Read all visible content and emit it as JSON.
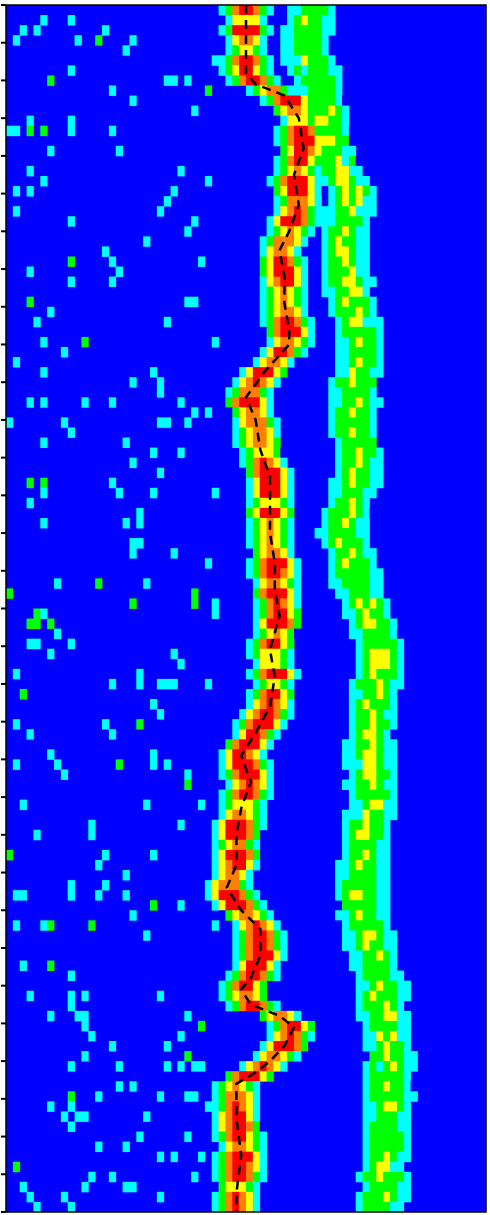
{
  "chart_data": {
    "type": "heatmap",
    "title": "",
    "xlabel": "",
    "ylabel": "",
    "x_range": [
      0,
      1
    ],
    "y_range": [
      0,
      32
    ],
    "grid": false,
    "legend": "none",
    "colormap": [
      "#0000ff",
      "#00ffff",
      "#00ff00",
      "#ffff00",
      "#ff8000",
      "#ff0000"
    ],
    "background_color": "#0000ff",
    "tracked_line": {
      "style": "dashed",
      "color": "#000000",
      "points": [
        [
          0.5,
          0.0
        ],
        [
          0.5,
          1.8
        ],
        [
          0.52,
          2.1
        ],
        [
          0.58,
          2.4
        ],
        [
          0.61,
          3.0
        ],
        [
          0.62,
          3.8
        ],
        [
          0.6,
          4.5
        ],
        [
          0.61,
          5.3
        ],
        [
          0.59,
          6.0
        ],
        [
          0.57,
          6.5
        ],
        [
          0.58,
          7.2
        ],
        [
          0.58,
          7.9
        ],
        [
          0.59,
          8.6
        ],
        [
          0.59,
          9.0
        ],
        [
          0.54,
          9.7
        ],
        [
          0.5,
          10.4
        ],
        [
          0.52,
          11.0
        ],
        [
          0.53,
          11.8
        ],
        [
          0.55,
          12.5
        ],
        [
          0.55,
          13.2
        ],
        [
          0.55,
          14.0
        ],
        [
          0.56,
          14.8
        ],
        [
          0.56,
          15.5
        ],
        [
          0.57,
          16.2
        ],
        [
          0.55,
          17.1
        ],
        [
          0.56,
          17.8
        ],
        [
          0.55,
          18.6
        ],
        [
          0.52,
          19.3
        ],
        [
          0.49,
          19.9
        ],
        [
          0.51,
          20.6
        ],
        [
          0.49,
          21.3
        ],
        [
          0.48,
          22.0
        ],
        [
          0.48,
          22.8
        ],
        [
          0.46,
          23.4
        ],
        [
          0.49,
          24.0
        ],
        [
          0.53,
          24.5
        ],
        [
          0.53,
          25.2
        ],
        [
          0.51,
          25.8
        ],
        [
          0.49,
          26.1
        ],
        [
          0.51,
          26.5
        ],
        [
          0.57,
          26.8
        ],
        [
          0.6,
          27.1
        ],
        [
          0.58,
          27.6
        ],
        [
          0.55,
          28.0
        ],
        [
          0.52,
          28.3
        ],
        [
          0.48,
          28.6
        ],
        [
          0.48,
          29.5
        ],
        [
          0.49,
          30.5
        ],
        [
          0.48,
          31.5
        ],
        [
          0.48,
          32.0
        ]
      ]
    },
    "secondary_band": {
      "points": [
        [
          0.64,
          0.0
        ],
        [
          0.62,
          1.0
        ],
        [
          0.65,
          2.0
        ],
        [
          0.68,
          4.0
        ],
        [
          0.72,
          5.0
        ],
        [
          0.7,
          6.0
        ],
        [
          0.72,
          8.0
        ],
        [
          0.74,
          9.0
        ],
        [
          0.72,
          11.0
        ],
        [
          0.74,
          12.0
        ],
        [
          0.7,
          14.0
        ],
        [
          0.75,
          16.0
        ],
        [
          0.78,
          17.0
        ],
        [
          0.76,
          19.0
        ],
        [
          0.76,
          21.0
        ],
        [
          0.74,
          23.0
        ],
        [
          0.74,
          24.0
        ],
        [
          0.76,
          25.0
        ],
        [
          0.78,
          26.0
        ],
        [
          0.79,
          27.0
        ],
        [
          0.8,
          28.0
        ],
        [
          0.79,
          30.0
        ],
        [
          0.78,
          32.0
        ]
      ]
    },
    "y_tick_count": 32
  }
}
